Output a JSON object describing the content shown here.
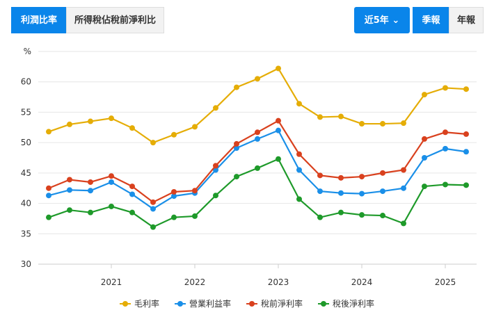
{
  "tabs": [
    {
      "label": "利潤比率",
      "active": true
    },
    {
      "label": "所得稅佔稅前淨利比",
      "active": false
    }
  ],
  "range": {
    "label": "近5年",
    "icon": "chevron-down-icon"
  },
  "period": [
    {
      "label": "季報",
      "active": true
    },
    {
      "label": "年報",
      "active": false
    }
  ],
  "chart_data": {
    "type": "line",
    "ylabel": "%",
    "ylim": [
      30,
      65
    ],
    "yticks": [
      30,
      35,
      40,
      45,
      50,
      55,
      60
    ],
    "xticks": [
      {
        "index": 3,
        "label": "2021"
      },
      {
        "index": 7,
        "label": "2022"
      },
      {
        "index": 11,
        "label": "2023"
      },
      {
        "index": 15,
        "label": "2024"
      },
      {
        "index": 19,
        "label": "2025"
      }
    ],
    "grid": true,
    "legend": "bottom",
    "series": [
      {
        "name": "毛利率",
        "color": "#e5ad06",
        "values": [
          51.8,
          53.0,
          53.5,
          54.0,
          52.4,
          50.0,
          51.3,
          52.6,
          55.7,
          59.1,
          60.5,
          62.2,
          56.4,
          54.2,
          54.3,
          53.1,
          53.1,
          53.2,
          57.9,
          59.0,
          58.8
        ]
      },
      {
        "name": "營業利益率",
        "color": "#1a8fe8",
        "values": [
          41.3,
          42.2,
          42.1,
          43.5,
          41.5,
          39.1,
          41.2,
          41.7,
          45.5,
          49.1,
          50.6,
          52.0,
          45.5,
          42.0,
          41.7,
          41.6,
          42.0,
          42.5,
          47.5,
          49.0,
          48.5
        ]
      },
      {
        "name": "稅前淨利率",
        "color": "#d9411e",
        "values": [
          42.5,
          43.9,
          43.5,
          44.5,
          42.8,
          40.2,
          41.9,
          42.1,
          46.2,
          49.8,
          51.7,
          53.6,
          48.1,
          44.6,
          44.2,
          44.4,
          45.0,
          45.5,
          50.6,
          51.7,
          51.4
        ]
      },
      {
        "name": "稅後淨利率",
        "color": "#1e9a2a",
        "values": [
          37.7,
          38.9,
          38.5,
          39.5,
          38.5,
          36.1,
          37.7,
          37.9,
          41.3,
          44.4,
          45.8,
          47.3,
          40.7,
          37.7,
          38.5,
          38.1,
          38.0,
          36.7,
          42.8,
          43.1,
          43.0
        ]
      }
    ]
  }
}
